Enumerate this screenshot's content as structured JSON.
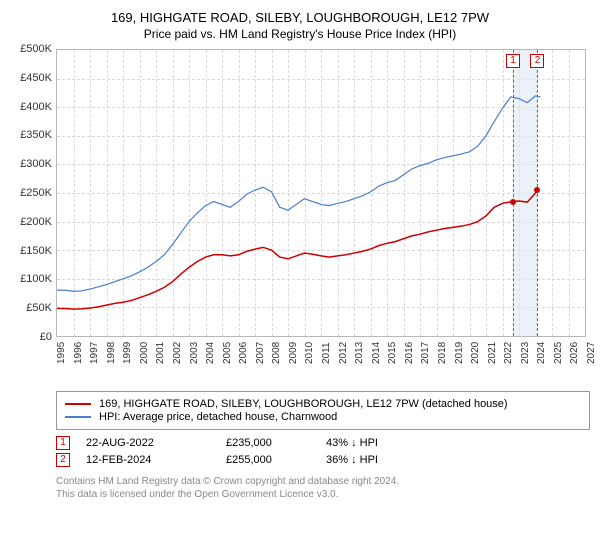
{
  "title": {
    "main": "169, HIGHGATE ROAD, SILEBY, LOUGHBOROUGH, LE12 7PW",
    "sub": "Price paid vs. HM Land Registry's House Price Index (HPI)",
    "fontsize_main": 13,
    "fontsize_sub": 12,
    "color": "#000000"
  },
  "chart": {
    "type": "line",
    "background_color": "#ffffff",
    "border_color": "#b8b8b8",
    "grid_color": "#d8d8d8",
    "grid_dash": "1,4",
    "xlim": [
      1995,
      2027
    ],
    "ylim": [
      0,
      500000
    ],
    "ytick_step": 50000,
    "ytick_labels": [
      "£0",
      "£50K",
      "£100K",
      "£150K",
      "£200K",
      "£250K",
      "£300K",
      "£350K",
      "£400K",
      "£450K",
      "£500K"
    ],
    "xtick_step": 1,
    "xtick_labels": [
      "1995",
      "1996",
      "1997",
      "1998",
      "1999",
      "2000",
      "2001",
      "2002",
      "2003",
      "2004",
      "2005",
      "2006",
      "2007",
      "2008",
      "2009",
      "2010",
      "2011",
      "2012",
      "2013",
      "2014",
      "2015",
      "2016",
      "2017",
      "2018",
      "2019",
      "2020",
      "2021",
      "2022",
      "2023",
      "2024",
      "2025",
      "2026",
      "2027"
    ],
    "label_fontsize": 11,
    "xlabel_fontsize": 10,
    "series": [
      {
        "name": "property",
        "label": "169, HIGHGATE ROAD, SILEBY, LOUGHBOROUGH, LE12 7PW (detached house)",
        "color": "#cc0000",
        "line_width": 1.5,
        "points": [
          [
            1995.0,
            48000
          ],
          [
            1995.5,
            48000
          ],
          [
            1996.0,
            47000
          ],
          [
            1996.5,
            47500
          ],
          [
            1997.0,
            49000
          ],
          [
            1997.5,
            51000
          ],
          [
            1998.0,
            54000
          ],
          [
            1998.5,
            57000
          ],
          [
            1999.0,
            59000
          ],
          [
            1999.5,
            62000
          ],
          [
            2000.0,
            67000
          ],
          [
            2000.5,
            72000
          ],
          [
            2001.0,
            78000
          ],
          [
            2001.5,
            85000
          ],
          [
            2002.0,
            95000
          ],
          [
            2002.5,
            108000
          ],
          [
            2003.0,
            120000
          ],
          [
            2003.5,
            130000
          ],
          [
            2004.0,
            138000
          ],
          [
            2004.5,
            142000
          ],
          [
            2005.0,
            142000
          ],
          [
            2005.5,
            140000
          ],
          [
            2006.0,
            142000
          ],
          [
            2006.5,
            148000
          ],
          [
            2007.0,
            152000
          ],
          [
            2007.5,
            155000
          ],
          [
            2008.0,
            150000
          ],
          [
            2008.5,
            138000
          ],
          [
            2009.0,
            135000
          ],
          [
            2009.5,
            140000
          ],
          [
            2010.0,
            145000
          ],
          [
            2010.5,
            143000
          ],
          [
            2011.0,
            140000
          ],
          [
            2011.5,
            138000
          ],
          [
            2012.0,
            140000
          ],
          [
            2012.5,
            142000
          ],
          [
            2013.0,
            145000
          ],
          [
            2013.5,
            148000
          ],
          [
            2014.0,
            152000
          ],
          [
            2014.5,
            158000
          ],
          [
            2015.0,
            162000
          ],
          [
            2015.5,
            165000
          ],
          [
            2016.0,
            170000
          ],
          [
            2016.5,
            175000
          ],
          [
            2017.0,
            178000
          ],
          [
            2017.5,
            182000
          ],
          [
            2018.0,
            185000
          ],
          [
            2018.5,
            188000
          ],
          [
            2019.0,
            190000
          ],
          [
            2019.5,
            192000
          ],
          [
            2020.0,
            195000
          ],
          [
            2020.5,
            200000
          ],
          [
            2021.0,
            210000
          ],
          [
            2021.5,
            225000
          ],
          [
            2022.0,
            232000
          ],
          [
            2022.6,
            235000
          ],
          [
            2023.0,
            236000
          ],
          [
            2023.5,
            234000
          ],
          [
            2024.0,
            250000
          ],
          [
            2024.1,
            255000
          ]
        ]
      },
      {
        "name": "hpi",
        "label": "HPI: Average price, detached house, Charnwood",
        "color": "#4a7ecc",
        "line_width": 1.2,
        "points": [
          [
            1995.0,
            80000
          ],
          [
            1995.5,
            80000
          ],
          [
            1996.0,
            78000
          ],
          [
            1996.5,
            79000
          ],
          [
            1997.0,
            82000
          ],
          [
            1997.5,
            86000
          ],
          [
            1998.0,
            90000
          ],
          [
            1998.5,
            95000
          ],
          [
            1999.0,
            100000
          ],
          [
            1999.5,
            105000
          ],
          [
            2000.0,
            112000
          ],
          [
            2000.5,
            120000
          ],
          [
            2001.0,
            130000
          ],
          [
            2001.5,
            142000
          ],
          [
            2002.0,
            160000
          ],
          [
            2002.5,
            180000
          ],
          [
            2003.0,
            200000
          ],
          [
            2003.5,
            215000
          ],
          [
            2004.0,
            228000
          ],
          [
            2004.5,
            235000
          ],
          [
            2005.0,
            230000
          ],
          [
            2005.5,
            225000
          ],
          [
            2006.0,
            235000
          ],
          [
            2006.5,
            248000
          ],
          [
            2007.0,
            255000
          ],
          [
            2007.5,
            260000
          ],
          [
            2008.0,
            252000
          ],
          [
            2008.5,
            225000
          ],
          [
            2009.0,
            220000
          ],
          [
            2009.5,
            230000
          ],
          [
            2010.0,
            240000
          ],
          [
            2010.5,
            235000
          ],
          [
            2011.0,
            230000
          ],
          [
            2011.5,
            228000
          ],
          [
            2012.0,
            232000
          ],
          [
            2012.5,
            235000
          ],
          [
            2013.0,
            240000
          ],
          [
            2013.5,
            245000
          ],
          [
            2014.0,
            252000
          ],
          [
            2014.5,
            262000
          ],
          [
            2015.0,
            268000
          ],
          [
            2015.5,
            272000
          ],
          [
            2016.0,
            282000
          ],
          [
            2016.5,
            292000
          ],
          [
            2017.0,
            298000
          ],
          [
            2017.5,
            302000
          ],
          [
            2018.0,
            308000
          ],
          [
            2018.5,
            312000
          ],
          [
            2019.0,
            315000
          ],
          [
            2019.5,
            318000
          ],
          [
            2020.0,
            322000
          ],
          [
            2020.5,
            332000
          ],
          [
            2021.0,
            350000
          ],
          [
            2021.5,
            375000
          ],
          [
            2022.0,
            398000
          ],
          [
            2022.5,
            418000
          ],
          [
            2023.0,
            415000
          ],
          [
            2023.5,
            408000
          ],
          [
            2024.0,
            420000
          ],
          [
            2024.3,
            418000
          ]
        ]
      }
    ],
    "markers": [
      {
        "id": "1",
        "x": 2022.64,
        "y": 235000,
        "color": "#cc0000",
        "dot_color": "#cc0000",
        "line_color": "#cc4444"
      },
      {
        "id": "2",
        "x": 2024.12,
        "y": 255000,
        "color": "#cc0000",
        "dot_color": "#cc0000",
        "line_color": "#cc4444"
      }
    ],
    "shade_band": {
      "x_start": 2022.64,
      "x_end": 2024.12,
      "color": "#e0e8f4",
      "opacity": 0.6
    }
  },
  "legend": {
    "border_color": "#999999",
    "fontsize": 11,
    "items": [
      {
        "color": "#cc0000",
        "label": "169, HIGHGATE ROAD, SILEBY, LOUGHBOROUGH, LE12 7PW (detached house)"
      },
      {
        "color": "#4a7ecc",
        "label": "HPI: Average price, detached house, Charnwood"
      }
    ]
  },
  "data_table": {
    "rows": [
      {
        "id": "1",
        "color": "#cc0000",
        "date": "22-AUG-2022",
        "price": "£235,000",
        "diff": "43% ↓ HPI"
      },
      {
        "id": "2",
        "color": "#cc0000",
        "date": "12-FEB-2024",
        "price": "£255,000",
        "diff": "36% ↓ HPI"
      }
    ]
  },
  "footer": {
    "line1": "Contains HM Land Registry data © Crown copyright and database right 2024.",
    "line2": "This data is licensed under the Open Government Licence v3.0.",
    "color": "#888888",
    "fontsize": 10
  }
}
